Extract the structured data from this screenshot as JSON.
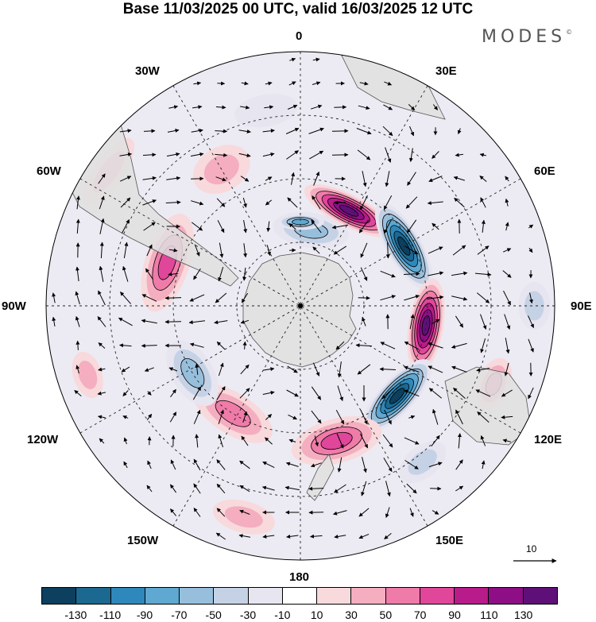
{
  "title": "Base 11/03/2025 00 UTC, valid 16/03/2025 12 UTC",
  "brand": "MODES",
  "brand_mark": "©",
  "longitude_labels": {
    "lon_0": "0",
    "lon_30e": "30E",
    "lon_60e": "60E",
    "lon_90e": "90E",
    "lon_120e": "120E",
    "lon_150e": "150E",
    "lon_180": "180",
    "lon_150w": "150W",
    "lon_120w": "120W",
    "lon_90w": "90W",
    "lon_60w": "60W",
    "lon_30w": "30W"
  },
  "reference_vector": {
    "label": "10"
  },
  "colorbar": {
    "colors": [
      "#0d3f5e",
      "#1b6891",
      "#2f88bb",
      "#5ea8d1",
      "#97bfdc",
      "#c5d2e6",
      "#e6e5f0",
      "#ffffff",
      "#f8d9dc",
      "#f4aec0",
      "#ef7ba8",
      "#e0469a",
      "#b81b8a",
      "#8e0f85",
      "#5e0f78"
    ],
    "tick_labels": [
      "-130",
      "-110",
      "-90",
      "-70",
      "-50",
      "-30",
      "-10",
      "10",
      "30",
      "50",
      "70",
      "90",
      "110",
      "130"
    ]
  },
  "anomaly_cells": [
    {
      "lon": 8,
      "colat": 0.3,
      "ar": 22,
      "at": 48,
      "value": -50
    },
    {
      "lon": 0,
      "colat": 0.33,
      "ar": 10,
      "at": 30,
      "value": -70
    },
    {
      "lon": 27,
      "colat": 0.42,
      "ar": 20,
      "at": 62,
      "value": 130
    },
    {
      "lon": 60,
      "colat": 0.47,
      "ar": 22,
      "at": 62,
      "value": -130
    },
    {
      "lon": 99,
      "colat": 0.5,
      "ar": 22,
      "at": 60,
      "value": 130
    },
    {
      "lon": 133,
      "colat": 0.52,
      "ar": 22,
      "at": 60,
      "value": -130
    },
    {
      "lon": 165,
      "colat": 0.55,
      "ar": 28,
      "at": 58,
      "value": 70
    },
    {
      "lon": 212,
      "colat": 0.5,
      "ar": 26,
      "at": 56,
      "value": 50
    },
    {
      "lon": 238,
      "colat": 0.5,
      "ar": 26,
      "at": 46,
      "value": -50
    },
    {
      "lon": 288,
      "colat": 0.55,
      "ar": 28,
      "at": 64,
      "value": 70
    },
    {
      "lon": 330,
      "colat": 0.62,
      "ar": 28,
      "at": 38,
      "value": 30
    },
    {
      "lon": 90,
      "colat": 0.92,
      "ar": 20,
      "at": 30,
      "value": -30
    },
    {
      "lon": 112,
      "colat": 0.82,
      "ar": 20,
      "at": 34,
      "value": 50
    },
    {
      "lon": 142,
      "colat": 0.78,
      "ar": 20,
      "at": 34,
      "value": -30
    },
    {
      "lon": 305,
      "colat": 0.92,
      "ar": 18,
      "at": 50,
      "value": 30
    },
    {
      "lon": 252,
      "colat": 0.88,
      "ar": 18,
      "at": 30,
      "value": 30
    },
    {
      "lon": 195,
      "colat": 0.86,
      "ar": 20,
      "at": 40,
      "value": 30
    },
    {
      "lon": 350,
      "colat": 0.78,
      "ar": 20,
      "at": 40,
      "value": -10
    }
  ]
}
